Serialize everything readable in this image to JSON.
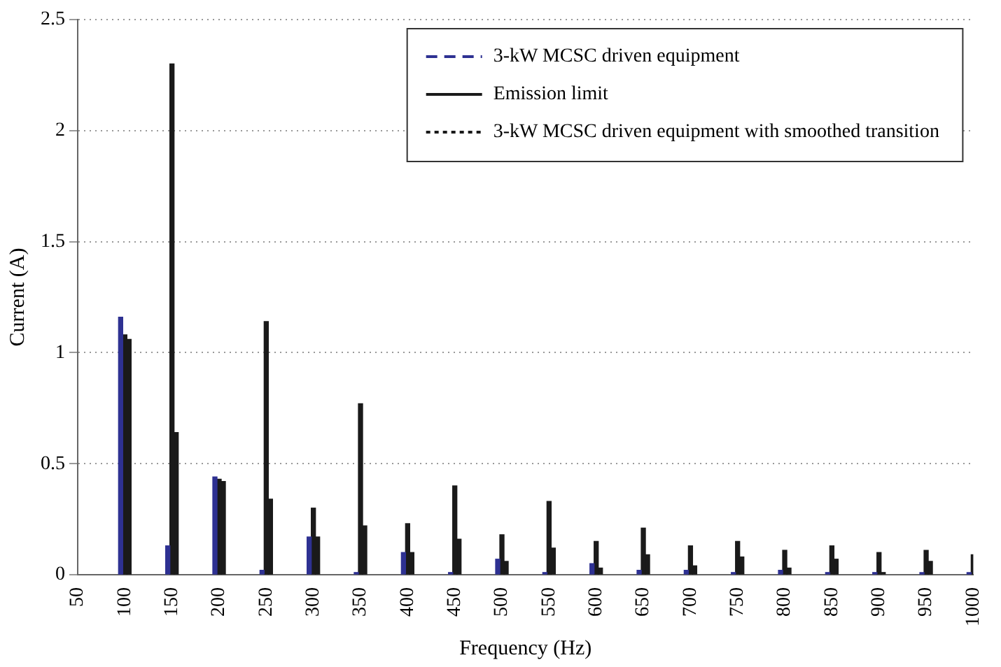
{
  "chart_data": {
    "type": "bar",
    "xlabel": "Frequency (Hz)",
    "ylabel": "Current (A)",
    "categories": [
      "50",
      "100",
      "150",
      "200",
      "250",
      "300",
      "350",
      "400",
      "450",
      "500",
      "550",
      "600",
      "650",
      "700",
      "750",
      "800",
      "850",
      "900",
      "950",
      "1000"
    ],
    "series": [
      {
        "name": "3-kW MCSC driven equipment",
        "color": "#2e3192",
        "line_style": "dashed",
        "values": [
          null,
          1.16,
          0.13,
          0.44,
          0.02,
          0.17,
          0.01,
          0.1,
          0.01,
          0.07,
          0.01,
          0.05,
          0.02,
          0.02,
          0.01,
          0.02,
          0.01,
          0.01,
          0.01,
          0.01
        ]
      },
      {
        "name": "Emission limit",
        "color": "#1a1a1a",
        "line_style": "solid",
        "values": [
          null,
          1.08,
          2.3,
          0.43,
          1.14,
          0.3,
          0.77,
          0.23,
          0.4,
          0.18,
          0.33,
          0.15,
          0.21,
          0.13,
          0.15,
          0.11,
          0.13,
          0.1,
          0.11,
          0.09
        ]
      },
      {
        "name": "3-kW MCSC driven equipment with smoothed transition",
        "color": "#1a1a1a",
        "line_style": "dotted",
        "values": [
          null,
          1.06,
          0.64,
          0.42,
          0.34,
          0.17,
          0.22,
          0.1,
          0.16,
          0.06,
          0.12,
          0.03,
          0.09,
          0.04,
          0.08,
          0.03,
          0.07,
          0.01,
          0.06,
          null
        ]
      }
    ],
    "ylim": [
      0,
      2.5
    ],
    "yticks": [
      0,
      0.5,
      1,
      1.5,
      2,
      2.5
    ],
    "grid": "y",
    "legend": "top right"
  }
}
